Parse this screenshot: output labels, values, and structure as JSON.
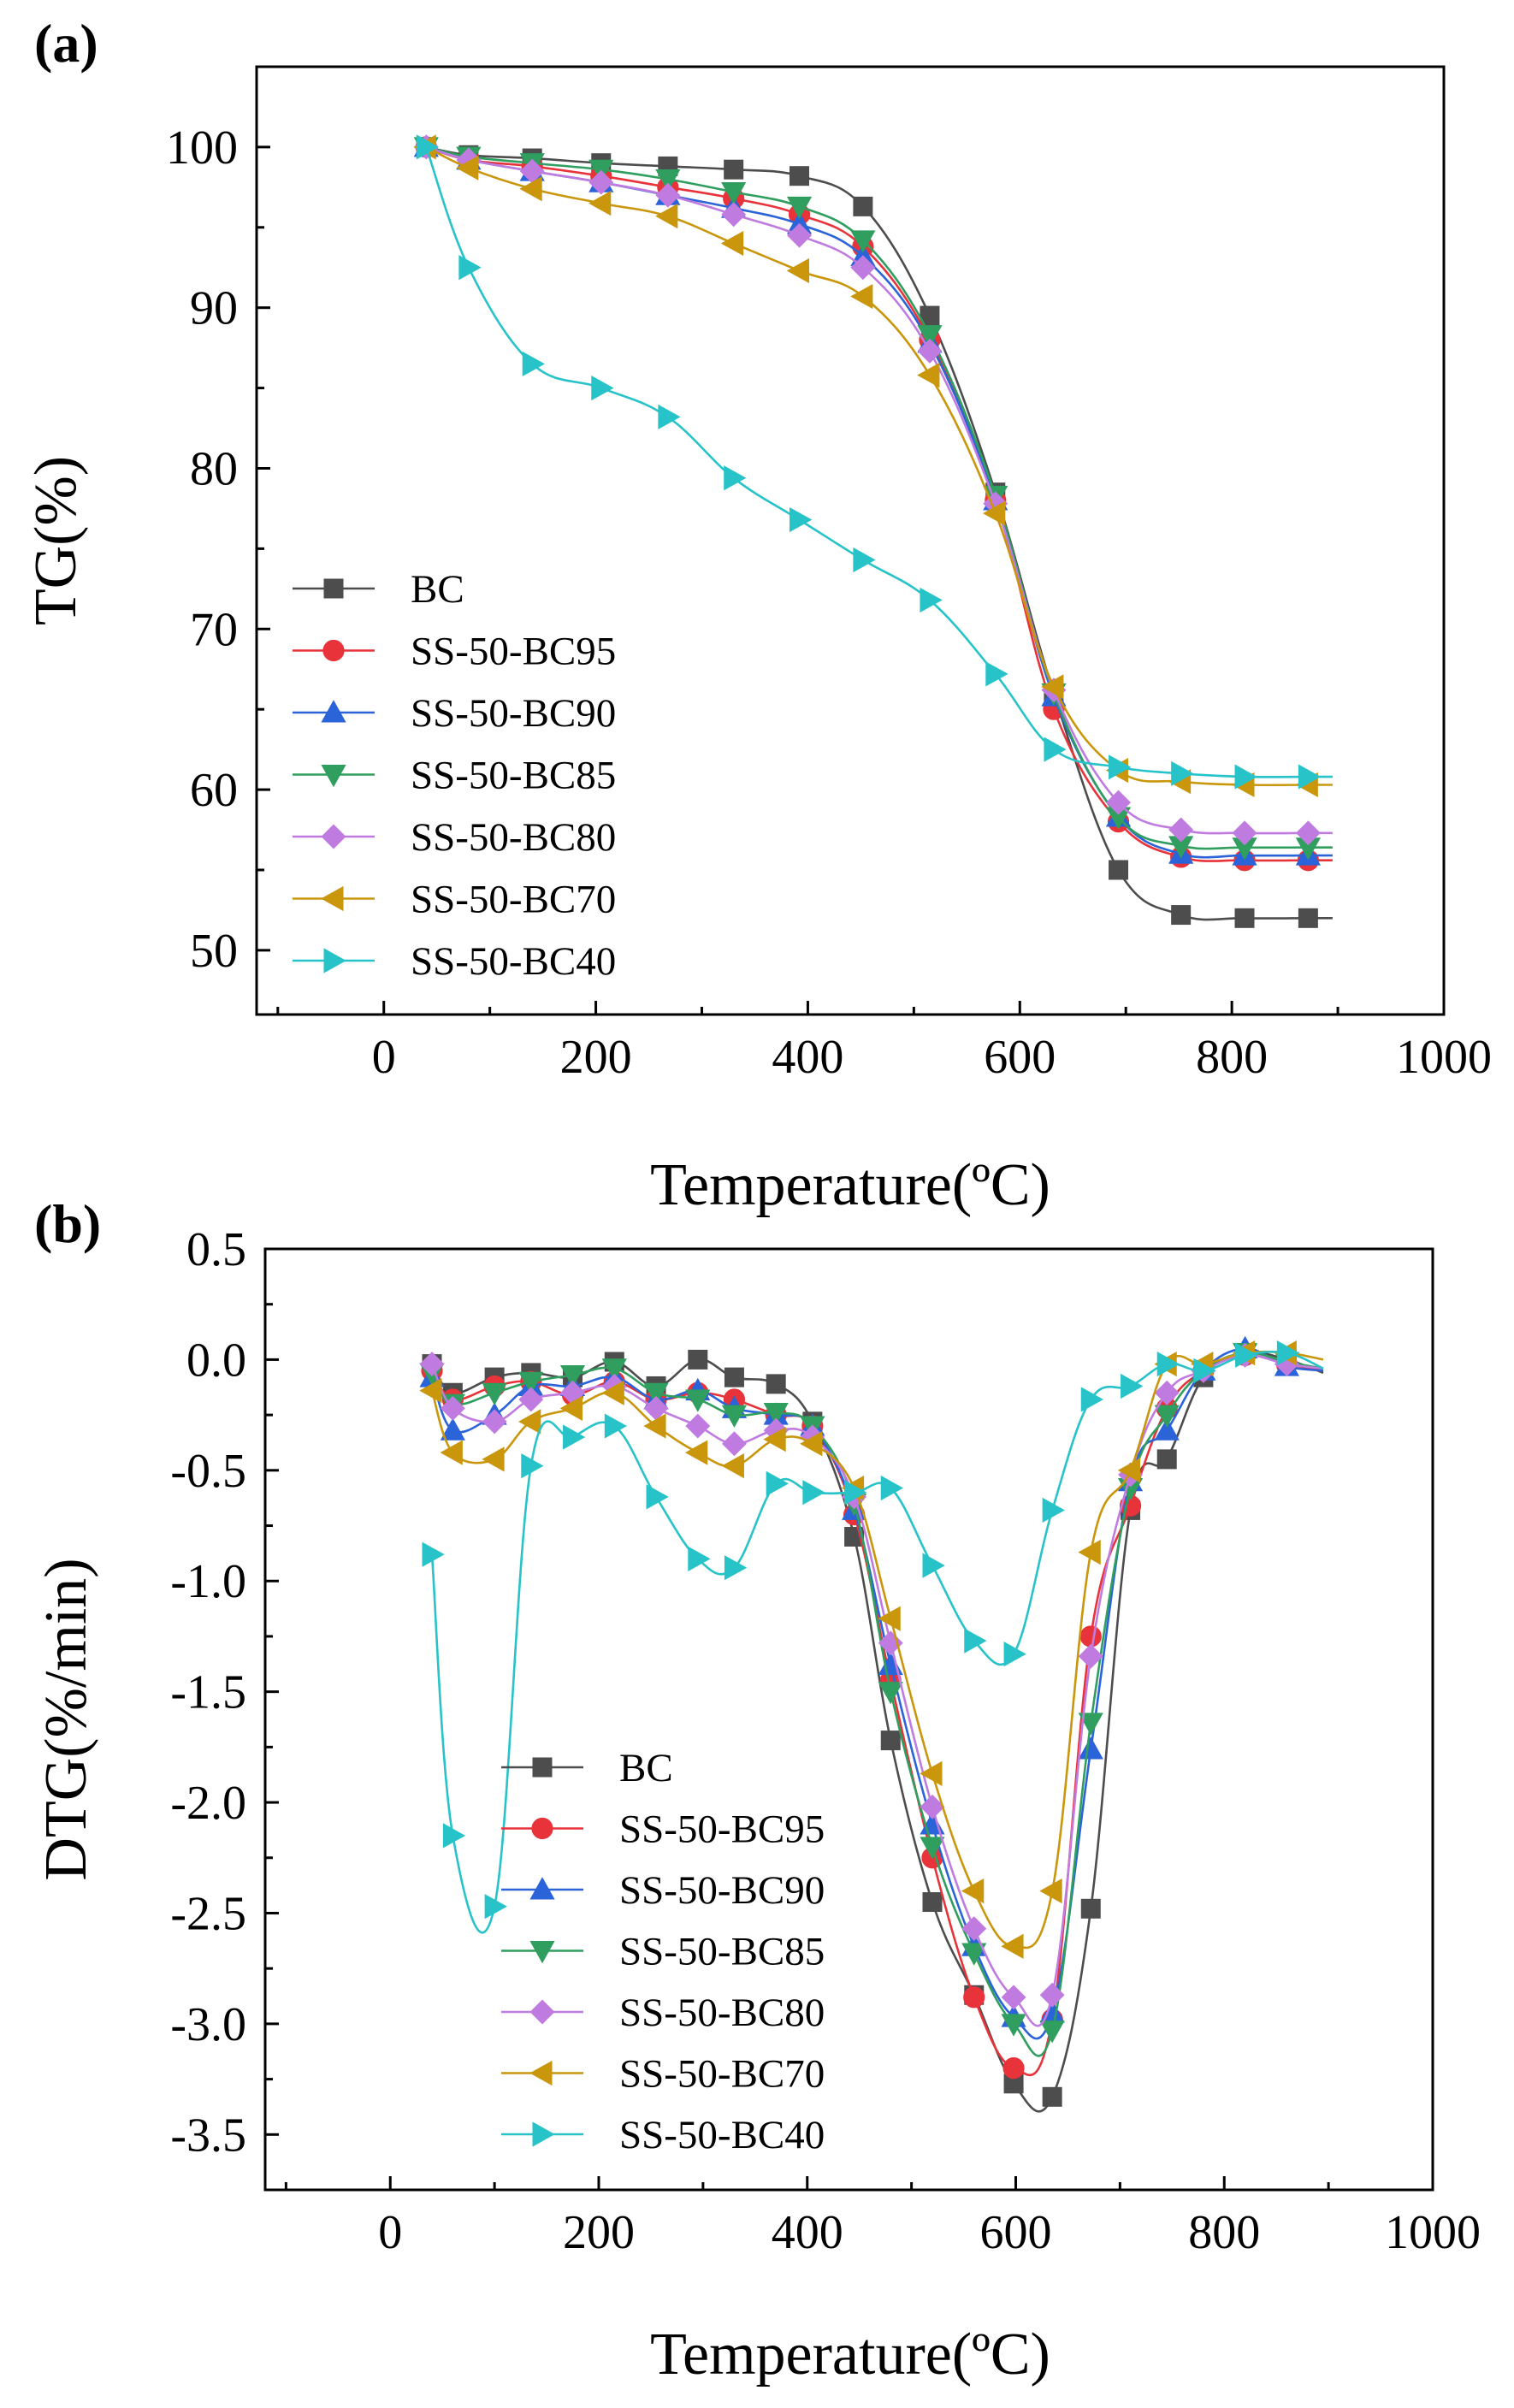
{
  "colors": {
    "BC": "#4d4d4d",
    "SS-50-BC95": "#e8333a",
    "SS-50-BC90": "#2b63d9",
    "SS-50-BC85": "#2f9e5e",
    "SS-50-BC80": "#c07be0",
    "SS-50-BC70": "#c9960c",
    "SS-50-BC40": "#27c3c9"
  },
  "chart_data": [
    {
      "panel_label": "(a)",
      "type": "line",
      "xlabel": "Temperature(ºC)",
      "ylabel": "TG(%)",
      "xlim": [
        -120,
        1000
      ],
      "ylim": [
        46,
        105
      ],
      "xticks": [
        0,
        200,
        400,
        600,
        800,
        1000
      ],
      "yticks": [
        50,
        60,
        70,
        80,
        90,
        100
      ],
      "grid": false,
      "legend_position": "left-middle",
      "series": [
        {
          "name": "BC",
          "marker": "square",
          "x": [
            40,
            80,
            140,
            205,
            268,
            330,
            392,
            452,
            515,
            577,
            632,
            693,
            752,
            812,
            872,
            895
          ],
          "y": [
            100,
            99.5,
            99.3,
            99.0,
            98.8,
            98.6,
            98.2,
            96.3,
            89.5,
            78.5,
            66.0,
            55.0,
            52.2,
            52.0,
            52.0,
            52.0
          ]
        },
        {
          "name": "SS-50-BC95",
          "marker": "circle",
          "x": [
            40,
            80,
            140,
            205,
            268,
            330,
            392,
            452,
            515,
            577,
            632,
            693,
            752,
            812,
            872,
            895
          ],
          "y": [
            100,
            99.2,
            98.8,
            98.2,
            97.5,
            96.8,
            95.8,
            93.8,
            88.0,
            78.0,
            65.0,
            58.0,
            55.8,
            55.6,
            55.6,
            55.6
          ]
        },
        {
          "name": "SS-50-BC90",
          "marker": "triangle-up",
          "x": [
            40,
            80,
            140,
            205,
            268,
            330,
            392,
            452,
            515,
            577,
            632,
            693,
            752,
            812,
            872,
            895
          ],
          "y": [
            100,
            99.2,
            98.5,
            97.8,
            97.0,
            96.2,
            95.2,
            93.2,
            87.8,
            78.0,
            65.8,
            58.3,
            56.0,
            55.9,
            55.9,
            55.9
          ]
        },
        {
          "name": "SS-50-BC85",
          "marker": "triangle-down",
          "x": [
            40,
            80,
            140,
            205,
            268,
            330,
            392,
            452,
            515,
            577,
            632,
            693,
            752,
            812,
            872,
            895
          ],
          "y": [
            100,
            99.4,
            99.0,
            98.6,
            98.0,
            97.2,
            96.3,
            94.2,
            88.3,
            78.3,
            66.0,
            58.3,
            56.5,
            56.4,
            56.4,
            56.4
          ]
        },
        {
          "name": "SS-50-BC80",
          "marker": "diamond",
          "x": [
            40,
            80,
            140,
            205,
            268,
            330,
            392,
            452,
            515,
            577,
            632,
            693,
            752,
            812,
            872,
            895
          ],
          "y": [
            100,
            99.2,
            98.5,
            97.8,
            97.0,
            95.8,
            94.5,
            92.5,
            87.3,
            77.8,
            66.2,
            59.2,
            57.5,
            57.3,
            57.3,
            57.3
          ]
        },
        {
          "name": "SS-50-BC70",
          "marker": "triangle-left",
          "x": [
            40,
            80,
            140,
            205,
            268,
            330,
            392,
            452,
            515,
            577,
            632,
            693,
            752,
            812,
            872,
            895
          ],
          "y": [
            100,
            98.7,
            97.4,
            96.5,
            95.7,
            94.0,
            92.3,
            90.7,
            85.8,
            77.2,
            66.4,
            61.2,
            60.5,
            60.3,
            60.3,
            60.3
          ]
        },
        {
          "name": "SS-50-BC40",
          "marker": "triangle-right",
          "x": [
            40,
            80,
            140,
            205,
            268,
            330,
            392,
            452,
            515,
            577,
            632,
            693,
            752,
            812,
            872,
            895
          ],
          "y": [
            100,
            92.5,
            86.5,
            85.0,
            83.2,
            79.4,
            76.8,
            74.3,
            71.8,
            67.2,
            62.5,
            61.4,
            61.0,
            60.8,
            60.8,
            60.8
          ]
        }
      ]
    },
    {
      "panel_label": "(b)",
      "type": "line",
      "xlabel": "Temperature(ºC)",
      "ylabel": "DTG(%/min)",
      "xlim": [
        -120,
        1000
      ],
      "ylim": [
        -3.75,
        0.5
      ],
      "xticks": [
        0,
        200,
        400,
        600,
        800,
        1000
      ],
      "yticks": [
        0.5,
        0.0,
        -0.5,
        -1.0,
        -1.5,
        -2.0,
        -2.5,
        -3.0,
        -3.5
      ],
      "ytick_labels": [
        "0.5",
        "0.0",
        "-0.5",
        "-1.0",
        "-1.5",
        "-2.0",
        "-2.5",
        "-3.0",
        "-3.5"
      ],
      "grid": false,
      "legend_position": "bottom-center",
      "series": [
        {
          "name": "BC",
          "marker": "square",
          "x": [
            40,
            60,
            100,
            135,
            175,
            215,
            255,
            295,
            330,
            370,
            405,
            445,
            480,
            520,
            560,
            598,
            635,
            672,
            710,
            745,
            780,
            820,
            860,
            895
          ],
          "y": [
            -0.02,
            -0.15,
            -0.08,
            -0.06,
            -0.08,
            -0.01,
            -0.12,
            0.0,
            -0.08,
            -0.11,
            -0.28,
            -0.8,
            -1.72,
            -2.45,
            -2.87,
            -3.27,
            -3.33,
            -2.48,
            -0.68,
            -0.45,
            -0.08,
            0.03,
            0.0,
            -0.06
          ]
        },
        {
          "name": "SS-50-BC95",
          "marker": "circle",
          "x": [
            40,
            60,
            100,
            135,
            175,
            215,
            255,
            295,
            330,
            370,
            405,
            445,
            480,
            520,
            560,
            598,
            635,
            672,
            710,
            745,
            780,
            820,
            860,
            895
          ],
          "y": [
            -0.05,
            -0.18,
            -0.12,
            -0.1,
            -0.16,
            -0.1,
            -0.18,
            -0.15,
            -0.18,
            -0.25,
            -0.3,
            -0.7,
            -1.45,
            -2.25,
            -2.88,
            -3.2,
            -2.98,
            -1.25,
            -0.66,
            -0.22,
            -0.05,
            0.02,
            -0.02,
            -0.05
          ]
        },
        {
          "name": "SS-50-BC90",
          "marker": "triangle-up",
          "x": [
            40,
            60,
            100,
            135,
            175,
            215,
            255,
            295,
            330,
            370,
            405,
            445,
            480,
            520,
            560,
            598,
            635,
            672,
            710,
            745,
            780,
            820,
            860,
            895
          ],
          "y": [
            -0.08,
            -0.32,
            -0.25,
            -0.12,
            -0.12,
            -0.08,
            -0.18,
            -0.14,
            -0.22,
            -0.25,
            -0.3,
            -0.68,
            -1.38,
            -2.1,
            -2.65,
            -2.97,
            -2.95,
            -1.76,
            -0.55,
            -0.32,
            -0.05,
            0.05,
            -0.03,
            -0.05
          ]
        },
        {
          "name": "SS-50-BC85",
          "marker": "triangle-down",
          "x": [
            40,
            60,
            100,
            135,
            175,
            215,
            255,
            295,
            330,
            370,
            405,
            445,
            480,
            520,
            560,
            598,
            635,
            672,
            710,
            745,
            780,
            820,
            860,
            895
          ],
          "y": [
            -0.06,
            -0.2,
            -0.15,
            -0.1,
            -0.07,
            -0.04,
            -0.15,
            -0.18,
            -0.25,
            -0.24,
            -0.3,
            -0.65,
            -1.5,
            -2.2,
            -2.68,
            -3.0,
            -3.03,
            -1.64,
            -0.58,
            -0.25,
            -0.05,
            0.03,
            -0.01,
            -0.04
          ]
        },
        {
          "name": "SS-50-BC80",
          "marker": "diamond",
          "x": [
            40,
            60,
            100,
            135,
            175,
            215,
            255,
            295,
            330,
            370,
            405,
            445,
            480,
            520,
            560,
            598,
            635,
            672,
            710,
            745,
            780,
            820,
            860,
            895
          ],
          "y": [
            -0.02,
            -0.22,
            -0.28,
            -0.18,
            -0.15,
            -0.12,
            -0.22,
            -0.3,
            -0.38,
            -0.32,
            -0.35,
            -0.62,
            -1.28,
            -2.02,
            -2.57,
            -2.88,
            -2.87,
            -1.34,
            -0.52,
            -0.15,
            -0.05,
            0.02,
            -0.02,
            -0.04
          ]
        },
        {
          "name": "SS-50-BC70",
          "marker": "triangle-left",
          "x": [
            40,
            60,
            100,
            135,
            175,
            215,
            255,
            295,
            330,
            370,
            405,
            445,
            480,
            520,
            560,
            598,
            635,
            672,
            710,
            745,
            780,
            820,
            860,
            895
          ],
          "y": [
            -0.14,
            -0.42,
            -0.45,
            -0.28,
            -0.22,
            -0.15,
            -0.3,
            -0.42,
            -0.48,
            -0.36,
            -0.38,
            -0.58,
            -1.17,
            -1.87,
            -2.4,
            -2.65,
            -2.4,
            -0.87,
            -0.5,
            -0.02,
            -0.02,
            0.03,
            0.03,
            0.0
          ]
        },
        {
          "name": "SS-50-BC40",
          "marker": "triangle-right",
          "x": [
            40,
            60,
            100,
            135,
            175,
            215,
            255,
            295,
            330,
            370,
            405,
            445,
            480,
            520,
            560,
            598,
            635,
            672,
            710,
            745,
            780,
            820,
            860,
            895
          ],
          "y": [
            -0.88,
            -2.15,
            -2.47,
            -0.48,
            -0.35,
            -0.3,
            -0.62,
            -0.9,
            -0.94,
            -0.56,
            -0.6,
            -0.6,
            -0.58,
            -0.93,
            -1.27,
            -1.33,
            -0.68,
            -0.18,
            -0.12,
            -0.02,
            -0.05,
            0.02,
            0.03,
            -0.04
          ]
        }
      ]
    }
  ]
}
